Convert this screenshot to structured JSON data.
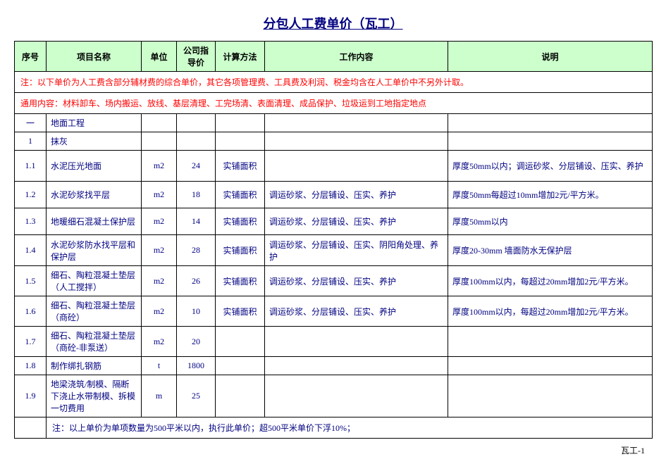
{
  "title": "分包人工费单价（瓦工）",
  "headers": {
    "seq": "序号",
    "name": "项目名称",
    "unit": "单位",
    "price": "公司指导价",
    "method": "计算方法",
    "work": "工作内容",
    "desc": "说明"
  },
  "note1": "注：以下单价为人工费含部分辅材费的综合单价，其它各项管理费、工具费及利润、税金均含在人工单价中不另外计取。",
  "note2": "通用内容：材料卸车、场内搬运、放线、基层清理、工完场清、表面清理、成品保护、垃圾运到工地指定地点",
  "section1": {
    "seq": "一",
    "name": "地面工程"
  },
  "sub1": {
    "seq": "1",
    "name": "抹灰"
  },
  "rows": [
    {
      "seq": "1.1",
      "name": "水泥压光地面",
      "unit": "m2",
      "price": "24",
      "method": "实铺面积",
      "work": "",
      "desc": "厚度50mm以内；调运砂浆、分层铺设、压实、养护"
    },
    {
      "seq": "1.2",
      "name": "水泥砂浆找平层",
      "unit": "m2",
      "price": "18",
      "method": "实铺面积",
      "work": "调运砂浆、分层铺设、压实、养护",
      "desc": "厚度50mm每超过10mm增加2元/平方米。"
    },
    {
      "seq": "1.3",
      "name": "地暖细石混凝土保护层",
      "unit": "m2",
      "price": "14",
      "method": "实铺面积",
      "work": "调运砂浆、分层铺设、压实、养护",
      "desc": "厚度50mm以内"
    },
    {
      "seq": "1.4",
      "name": "水泥砂浆防水找平层和保护层",
      "unit": "m2",
      "price": "28",
      "method": "实铺面积",
      "work": "调运砂浆、分层铺设、压实、阴阳角处理、养护",
      "desc": "厚度20-30mm 墙面防水无保护层"
    },
    {
      "seq": "1.5",
      "name": "细石、陶粒混凝土垫层（人工搅拌）",
      "unit": "m2",
      "price": "26",
      "method": "实铺面积",
      "work": "调运砂浆、分层铺设、压实、养护",
      "desc": "厚度100mm以内，每超过20mm增加2元/平方米。"
    },
    {
      "seq": "1.6",
      "name": "细石、陶粒混凝土垫层（商砼）",
      "unit": "m2",
      "price": "10",
      "method": "实铺面积",
      "work": "调运砂浆、分层铺设、压实、养护",
      "desc": "厚度100mm以内，每超过20mm增加2元/平方米。"
    },
    {
      "seq": "1.7",
      "name": "细石、陶粒混凝土垫层（商砼-非泵送）",
      "unit": "m2",
      "price": "20",
      "method": "",
      "work": "",
      "desc": ""
    },
    {
      "seq": "1.8",
      "name": "制作绑扎钢筋",
      "unit": "t",
      "price": "1800",
      "method": "",
      "work": "",
      "desc": ""
    },
    {
      "seq": "1.9",
      "name": "地梁浇筑/制模、隔断下浇止水带制模、拆模一切费用",
      "unit": "m",
      "price": "25",
      "method": "",
      "work": "",
      "desc": ""
    }
  ],
  "bottomNote": "注：以上单价为单项数量为500平米以内，执行此单价；超500平米单价下浮10%；",
  "pageNum": "瓦工-1"
}
